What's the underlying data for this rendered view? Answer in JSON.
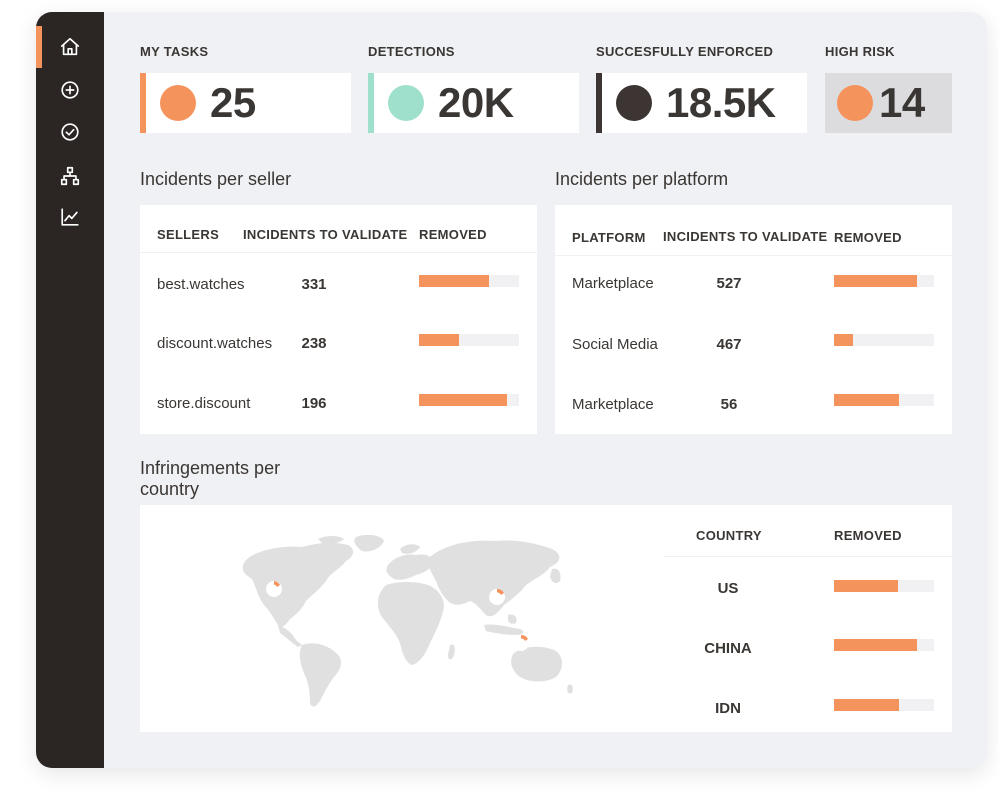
{
  "kpis": [
    {
      "label": "MY TASKS",
      "value": "25",
      "dot_color": "#f5935c",
      "accent_color": "#f5935c",
      "card_bg": "#ffffff"
    },
    {
      "label": "DETECTIONS",
      "value": "20K",
      "dot_color": "#9fe0cd",
      "accent_color": "#9fe0cd",
      "card_bg": "#ffffff"
    },
    {
      "label": "SUCCESFULLY ENFORCED",
      "value": "18.5K",
      "dot_color": "#3c3533",
      "accent_color": "#3c3533",
      "card_bg": "#ffffff"
    },
    {
      "label": "HIGH RISK",
      "value": "14",
      "dot_color": "#f5935c",
      "accent_color": "#dcdcdf",
      "card_bg": "#dcdcdf"
    }
  ],
  "nav": {
    "icons": [
      "home-icon",
      "add-circle-icon",
      "check-circle-icon",
      "hierarchy-icon",
      "line-chart-icon"
    ]
  },
  "sellers": {
    "title": "Incidents per seller",
    "headers": [
      "SELLERS",
      "INCIDENTS TO VALIDATE",
      "REMOVED"
    ],
    "rows": [
      {
        "name": "best.watches",
        "count": "331",
        "removed": 0.7
      },
      {
        "name": "discount.watches",
        "count": "238",
        "removed": 0.4
      },
      {
        "name": "store.discount",
        "count": "196",
        "removed": 0.88
      }
    ]
  },
  "platforms": {
    "title": "Incidents per platform",
    "headers": [
      "PLATFORM",
      "INCIDENTS TO VALIDATE",
      "REMOVED"
    ],
    "rows": [
      {
        "name": "Marketplace",
        "count": "527",
        "removed": 0.83
      },
      {
        "name": "Social Media",
        "count": "467",
        "removed": 0.19
      },
      {
        "name": "Marketplace",
        "count": "56",
        "removed": 0.65
      }
    ]
  },
  "countries": {
    "title_line1": "Infringements per",
    "title_line2": "country",
    "headers": [
      "COUNTRY",
      "REMOVED"
    ],
    "rows": [
      {
        "name": "US",
        "removed": 0.64
      },
      {
        "name": "CHINA",
        "removed": 0.83
      },
      {
        "name": "IDN",
        "removed": 0.65
      }
    ]
  },
  "colors": {
    "accent": "#f5935c",
    "sidebar": "#2b2624",
    "map_land": "#e0e0e0"
  }
}
